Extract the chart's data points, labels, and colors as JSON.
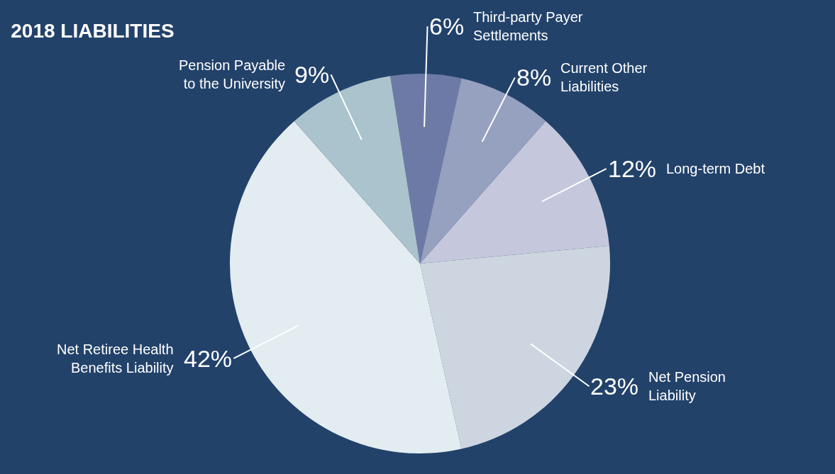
{
  "chart_data": {
    "type": "pie",
    "title": "2018 LIABILITIES",
    "categories": [
      "Third-party Payer Settlements",
      "Current Other Liabilities",
      "Long-term Debt",
      "Net Pension Liability",
      "Net Retiree Health Benefits Liability",
      "Pension Payable to the University"
    ],
    "values": [
      6,
      8,
      12,
      23,
      42,
      9
    ],
    "value_labels": [
      "6%",
      "8%",
      "12%",
      "23%",
      "42%",
      "9%"
    ],
    "colors": [
      "#6e7aa6",
      "#96a0bf",
      "#c5c8dc",
      "#cdd6e0",
      "#e3ecf0",
      "#aac3cd"
    ],
    "legend": false
  }
}
